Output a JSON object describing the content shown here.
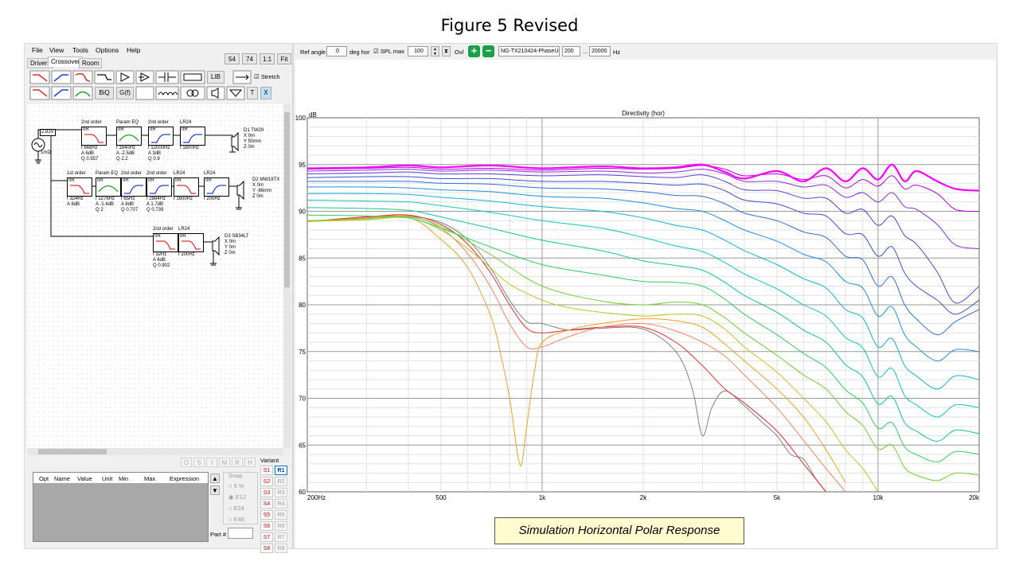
{
  "figure_title": "Figure 5 Revised",
  "caption": "Simulation Horizontal Polar Response",
  "menu": [
    "File",
    "View",
    "Tools",
    "Options",
    "Help"
  ],
  "tabs": [
    "Drivers",
    "Crossover",
    "Room"
  ],
  "view_buttons": [
    "54",
    "74",
    "1:1",
    "Fit"
  ],
  "palette": {
    "lib": "LIB",
    "stretch": "Stretch",
    "biq": "BiQ",
    "gf": "G(f)",
    "t": "T",
    "x": "X"
  },
  "schematic": {
    "source_level": "2.83V",
    "source_res": "1mΩ",
    "row1": [
      {
        "head": "2nd order",
        "tag": "IIR",
        "params": [
          "f  668Hz",
          "A  6dB",
          "Q 0.557"
        ],
        "kind": "hp"
      },
      {
        "head": "Param EQ",
        "tag": "IIR",
        "params": [
          "f  1640Hz",
          "A  -2.5dB",
          "Q 2.2"
        ],
        "kind": "peq"
      },
      {
        "head": "2nd order",
        "tag": "IIR",
        "params": [
          "f  12000Hz",
          "A  3dB",
          "Q 0.9"
        ],
        "kind": "ls"
      },
      {
        "head": "LR24",
        "tag": "IIR",
        "params": [
          "f  1600Hz"
        ],
        "kind": "ls"
      }
    ],
    "row2": [
      {
        "head": "1st order",
        "tag": "IIR",
        "params": [
          "f  324Hz",
          "A  8dB"
        ],
        "kind": "hp"
      },
      {
        "head": "Param EQ",
        "tag": "IIR",
        "params": [
          "f  1276Hz",
          "A  -1.4dB",
          "Q 2"
        ],
        "kind": "peq"
      },
      {
        "head": "2nd order",
        "tag": "IIR",
        "params": [
          "f  65Hz",
          "A  8dB",
          "Q 0.707"
        ],
        "kind": "ls"
      },
      {
        "head": "2nd order",
        "tag": "IIR",
        "params": [
          "f  2884Hz",
          "A  1.7dB",
          "Q 0.739"
        ],
        "kind": "ls"
      },
      {
        "head": "LR24",
        "tag": "IIR",
        "params": [
          "f  1600Hz"
        ],
        "kind": "hp"
      },
      {
        "head": "LR24",
        "tag": "IIR",
        "params": [
          "f  200Hz"
        ],
        "kind": "ls"
      }
    ],
    "row3": [
      {
        "head": "2nd order",
        "tag": "IIR",
        "params": [
          "f  32Hz",
          "A  6dB",
          "Q 0.902"
        ],
        "kind": "hp"
      },
      {
        "head": "LR24",
        "tag": "IIR",
        "params": [
          "f  200Hz"
        ],
        "kind": "hp"
      }
    ],
    "drivers": [
      {
        "name": "D1 TW29",
        "pos": [
          "X 0m",
          "Y 50mm",
          "Z 0m"
        ]
      },
      {
        "name": "D2 MW16TX",
        "pos": [
          "X 0m",
          "Y -86mm",
          "Z 0m"
        ]
      },
      {
        "name": "D3 SB34LT",
        "pos": [
          "X 0m",
          "Y 0m",
          "Z 0m"
        ]
      }
    ]
  },
  "small_buttons": [
    "O",
    "S",
    "I",
    "M",
    "R",
    "H"
  ],
  "table_headers": [
    "Opt",
    "Name",
    "Value",
    "Unit",
    "Min",
    "Max",
    "Expression"
  ],
  "snap": {
    "label": "Snap",
    "options": [
      "5 %",
      "E12",
      "E24",
      "E48"
    ],
    "selected": "E12"
  },
  "part_label": "Part #",
  "variant": {
    "label": "Variant",
    "s": [
      "S1",
      "S2",
      "S3",
      "S4",
      "S5",
      "S6",
      "S7",
      "S8"
    ],
    "r": [
      "R1",
      "R2",
      "R3",
      "R4",
      "R5",
      "R6",
      "R7",
      "R8"
    ],
    "active_r": "R1"
  },
  "toolbar": {
    "ref_angle_label": "Ref angle",
    "ref_angle_value": "0",
    "deg_label": "deg hor",
    "spl_label": "SPL max",
    "spl_value": "100",
    "ovl_label": "Ovl",
    "file": "NG-TX210424-PhaseUr",
    "fmin": "200",
    "fsep": "...",
    "fmax": "20000",
    "hz": "Hz"
  },
  "colors": {
    "background": "#f0f0f0",
    "plot_bg": "#ffffff",
    "caption_bg": "#fffdd0",
    "accent": "#0078d7"
  },
  "chart_data": {
    "type": "line",
    "title": "Directivity (hor)",
    "ylabel": "dB",
    "xscale": "log",
    "xlim": [
      200,
      20000
    ],
    "ylim": [
      60,
      100
    ],
    "xticks": [
      "200Hz",
      "500",
      "1k",
      "2k",
      "5k",
      "10k",
      "20k"
    ],
    "yticks": [
      "100",
      "95",
      "90",
      "85",
      "80",
      "75",
      "70",
      "65",
      "60"
    ],
    "grid": true,
    "series": [
      {
        "color": "#ff00ff",
        "width": 2.2,
        "x": [
          200,
          300,
          400,
          500,
          700,
          1000,
          1500,
          2000,
          2500,
          3000,
          3500,
          4000,
          5000,
          6000,
          7000,
          8000,
          9000,
          10000,
          11000,
          12000,
          13000,
          15000,
          17000,
          20000
        ],
        "y": [
          94.6,
          94.7,
          94.9,
          94.7,
          94.9,
          94.6,
          94.8,
          94.6,
          94.7,
          95.0,
          94.2,
          93.5,
          94.3,
          93.2,
          94.6,
          93.2,
          94.6,
          93.4,
          95.0,
          93.2,
          94.3,
          93.2,
          92.4,
          92.2
        ]
      },
      {
        "color": "#b400dc",
        "width": 1,
        "x": [
          200,
          300,
          400,
          500,
          700,
          1000,
          1500,
          2000,
          2500,
          3000,
          3500,
          4000,
          5000,
          6000,
          7000,
          8000,
          9000,
          10000,
          11000,
          12000,
          13000,
          15000,
          17000,
          20000
        ],
        "y": [
          94.5,
          94.6,
          94.7,
          94.5,
          94.6,
          94.4,
          94.6,
          94.5,
          94.6,
          94.9,
          94.5,
          93.8,
          94.0,
          93.4,
          93.8,
          92.5,
          93.4,
          92.7,
          93.8,
          92.4,
          92.8,
          91.9,
          90.2,
          90.0
        ]
      },
      {
        "color": "#8a2be2",
        "width": 1,
        "x": [
          200,
          300,
          400,
          500,
          700,
          1000,
          1500,
          2000,
          2500,
          3000,
          3500,
          4000,
          5000,
          6000,
          7000,
          8000,
          9000,
          10000,
          11000,
          12000,
          13000,
          15000,
          17000,
          20000
        ],
        "y": [
          94.3,
          94.4,
          94.5,
          94.3,
          94.4,
          94.2,
          94.3,
          94.1,
          94.2,
          94.5,
          94.0,
          93.2,
          93.2,
          92.6,
          92.8,
          91.5,
          92.0,
          91.0,
          92.0,
          90.5,
          90.2,
          88.6,
          86.4,
          86.0
        ]
      },
      {
        "color": "#5a3fd8",
        "width": 1,
        "x": [
          200,
          300,
          400,
          500,
          700,
          1000,
          1500,
          2000,
          2500,
          3000,
          3500,
          4000,
          5000,
          6000,
          7000,
          8000,
          9000,
          10000,
          11000,
          12000,
          13000,
          15000,
          17000,
          20000
        ],
        "y": [
          94.0,
          94.1,
          94.2,
          94.0,
          94.0,
          93.8,
          93.9,
          93.7,
          93.6,
          93.9,
          93.2,
          92.3,
          92.2,
          91.4,
          91.4,
          89.8,
          90.2,
          88.5,
          89.5,
          87.4,
          86.5,
          83.5,
          80.2,
          82.0
        ]
      },
      {
        "color": "#3a50d0",
        "width": 1,
        "x": [
          200,
          300,
          400,
          500,
          700,
          1000,
          1500,
          2000,
          2500,
          3000,
          3500,
          4000,
          5000,
          6000,
          7000,
          8000,
          9000,
          10000,
          11000,
          12000,
          13000,
          15000,
          17000,
          20000
        ],
        "y": [
          93.6,
          93.7,
          93.7,
          93.5,
          93.5,
          93.2,
          93.2,
          93.0,
          92.8,
          92.9,
          92.2,
          91.2,
          90.8,
          89.8,
          89.5,
          87.6,
          87.5,
          85.2,
          86.2,
          83.4,
          82.0,
          80.5,
          79.0,
          80.5
        ]
      },
      {
        "color": "#2f6fd6",
        "width": 1,
        "x": [
          200,
          300,
          400,
          500,
          700,
          1000,
          1500,
          2000,
          2500,
          3000,
          3500,
          4000,
          5000,
          6000,
          7000,
          8000,
          9000,
          10000,
          11000,
          12000,
          13000,
          15000,
          17000,
          20000
        ],
        "y": [
          93.2,
          93.2,
          93.2,
          93.0,
          92.9,
          92.5,
          92.4,
          92.1,
          91.7,
          91.6,
          90.8,
          89.8,
          89.0,
          87.8,
          87.2,
          85.2,
          84.8,
          82.0,
          83.0,
          80.0,
          78.5,
          76.8,
          78.2,
          79.5
        ]
      },
      {
        "color": "#1f8fe0",
        "width": 1,
        "x": [
          200,
          300,
          400,
          500,
          700,
          1000,
          1500,
          2000,
          2500,
          3000,
          3500,
          4000,
          5000,
          6000,
          7000,
          8000,
          9000,
          10000,
          11000,
          12000,
          13000,
          15000,
          17000,
          20000
        ],
        "y": [
          92.6,
          92.6,
          92.5,
          92.3,
          92.1,
          91.6,
          91.4,
          90.9,
          90.3,
          90.0,
          89.0,
          88.0,
          86.8,
          85.4,
          84.6,
          82.5,
          81.8,
          78.8,
          79.8,
          76.8,
          75.5,
          74.0,
          75.2,
          75.0
        ]
      },
      {
        "color": "#10b0e0",
        "width": 1,
        "x": [
          200,
          300,
          400,
          500,
          700,
          1000,
          1500,
          2000,
          2500,
          3000,
          3500,
          4000,
          5000,
          6000,
          7000,
          8000,
          9000,
          10000,
          11000,
          12000,
          13000,
          15000,
          17000,
          20000
        ],
        "y": [
          91.9,
          91.9,
          91.8,
          91.5,
          91.1,
          90.5,
          90.0,
          89.3,
          88.5,
          88.0,
          86.9,
          85.8,
          84.3,
          82.8,
          81.8,
          79.5,
          78.6,
          75.5,
          76.4,
          73.5,
          72.4,
          71.0,
          72.4,
          72.0
        ]
      },
      {
        "color": "#10c8c0",
        "width": 1,
        "x": [
          200,
          300,
          400,
          500,
          700,
          1000,
          1500,
          2000,
          2500,
          3000,
          3500,
          4000,
          5000,
          6000,
          7000,
          8000,
          9000,
          10000,
          11000,
          12000,
          13000,
          15000,
          17000,
          20000
        ],
        "y": [
          91.2,
          91.1,
          91.0,
          90.6,
          89.9,
          89.0,
          88.2,
          87.2,
          86.3,
          85.7,
          84.5,
          83.3,
          81.7,
          80.0,
          78.8,
          76.5,
          75.4,
          72.3,
          73.2,
          70.3,
          69.3,
          68.0,
          69.3,
          69.0
        ]
      },
      {
        "color": "#10c890",
        "width": 1,
        "x": [
          200,
          300,
          400,
          500,
          700,
          1000,
          1500,
          2000,
          2500,
          3000,
          3500,
          4000,
          5000,
          6000,
          7000,
          8000,
          9000,
          10000,
          11000,
          12000,
          13000,
          15000,
          17000,
          20000
        ],
        "y": [
          90.4,
          90.3,
          90.1,
          89.4,
          88.2,
          86.9,
          85.8,
          84.7,
          84.2,
          83.7,
          82.4,
          81.0,
          79.2,
          77.3,
          76.0,
          73.6,
          72.3,
          69.4,
          70.2,
          67.4,
          66.5,
          65.4,
          66.6,
          66.2
        ]
      },
      {
        "color": "#2ed060",
        "width": 1,
        "x": [
          200,
          300,
          400,
          500,
          700,
          1000,
          1500,
          2000,
          2500,
          3000,
          3500,
          4000,
          5000,
          6000,
          7000,
          8000,
          9000,
          10000,
          11000,
          12000,
          13000,
          15000,
          17000,
          20000
        ],
        "y": [
          89.6,
          89.5,
          89.3,
          88.2,
          86.2,
          84.3,
          83.2,
          82.5,
          82.4,
          82.0,
          80.6,
          79.0,
          76.8,
          74.8,
          73.3,
          70.9,
          69.5,
          66.8,
          67.4,
          64.8,
          64.0,
          63.2,
          64.3,
          64.0
        ]
      },
      {
        "color": "#70d030",
        "width": 1,
        "x": [
          200,
          300,
          400,
          500,
          700,
          1000,
          1500,
          2000,
          2500,
          3000,
          3500,
          4000,
          5000,
          6000,
          7000,
          8000,
          9000,
          10000,
          11000,
          12000,
          13000,
          15000,
          17000,
          20000
        ],
        "y": [
          89.0,
          89.2,
          89.4,
          88.4,
          85.4,
          82.0,
          80.4,
          80.0,
          80.3,
          80.0,
          78.6,
          77.0,
          74.6,
          72.5,
          71.0,
          68.6,
          67.1,
          64.6,
          65.0,
          62.6,
          61.8,
          61.2,
          62.0,
          61.8
        ]
      },
      {
        "color": "#c8c020",
        "width": 1,
        "x": [
          200,
          300,
          400,
          500,
          600,
          700,
          800,
          1000,
          1200,
          1500,
          2000,
          2500,
          3000,
          3500,
          4000,
          5000,
          6000,
          7000,
          8000,
          9000,
          10000
        ],
        "y": [
          88.9,
          89.1,
          89.3,
          88.0,
          86.0,
          84.0,
          82.2,
          80.5,
          79.7,
          79.2,
          78.8,
          79.0,
          78.8,
          77.4,
          75.5,
          72.8,
          70.0,
          67.5,
          64.5,
          62.5,
          60.0
        ]
      },
      {
        "color": "#f0a020",
        "width": 1,
        "x": [
          200,
          300,
          400,
          500,
          600,
          700,
          750,
          800,
          830,
          850,
          870,
          900,
          950,
          1000,
          1200,
          1500,
          2000,
          2500,
          3000,
          3500,
          4000,
          5000,
          6000,
          7000,
          8000
        ],
        "y": [
          88.9,
          89.2,
          89.4,
          87.0,
          84.0,
          79.0,
          75.0,
          70.0,
          66.0,
          63.5,
          63.0,
          67.0,
          73.0,
          76.0,
          77.3,
          78.0,
          78.5,
          78.3,
          77.6,
          75.8,
          74.0,
          71.0,
          68.0,
          64.5,
          61.0
        ]
      },
      {
        "color": "#ff8060",
        "width": 1,
        "x": [
          200,
          300,
          400,
          500,
          600,
          700,
          800,
          900,
          1000,
          1200,
          1500,
          2000,
          2500,
          3000,
          3500,
          4000,
          5000,
          6000,
          7000,
          8000
        ],
        "y": [
          88.9,
          89.3,
          89.5,
          88.2,
          85.5,
          82.0,
          78.0,
          75.5,
          75.5,
          76.6,
          77.6,
          78.0,
          77.2,
          76.0,
          74.5,
          72.5,
          69.0,
          65.5,
          62.5,
          60.0
        ]
      },
      {
        "color": "#e83030",
        "width": 1,
        "x": [
          200,
          300,
          400,
          500,
          600,
          700,
          800,
          900,
          1000,
          1200,
          1500,
          2000,
          2500,
          3000,
          3500,
          4000,
          5000,
          6000,
          7000
        ],
        "y": [
          88.9,
          89.4,
          89.6,
          88.6,
          86.5,
          83.5,
          80.0,
          77.5,
          77.0,
          77.3,
          77.6,
          77.6,
          76.0,
          73.5,
          71.0,
          69.5,
          66.5,
          63.0,
          60.0
        ]
      },
      {
        "color": "#808080",
        "width": 1,
        "x": [
          200,
          300,
          400,
          500,
          600,
          700,
          800,
          900,
          1000,
          1200,
          1500,
          2000,
          2500,
          2800,
          3000,
          3200,
          3500,
          4000,
          4500,
          5000,
          5500,
          6000,
          6500,
          7000
        ],
        "y": [
          88.9,
          89.4,
          89.5,
          88.8,
          87.0,
          84.0,
          80.5,
          78.2,
          78.0,
          77.3,
          77.5,
          77.4,
          75.0,
          71.0,
          66.0,
          69.0,
          70.8,
          69.2,
          67.5,
          66.0,
          64.0,
          63.5,
          61.5,
          60.0
        ]
      }
    ]
  }
}
